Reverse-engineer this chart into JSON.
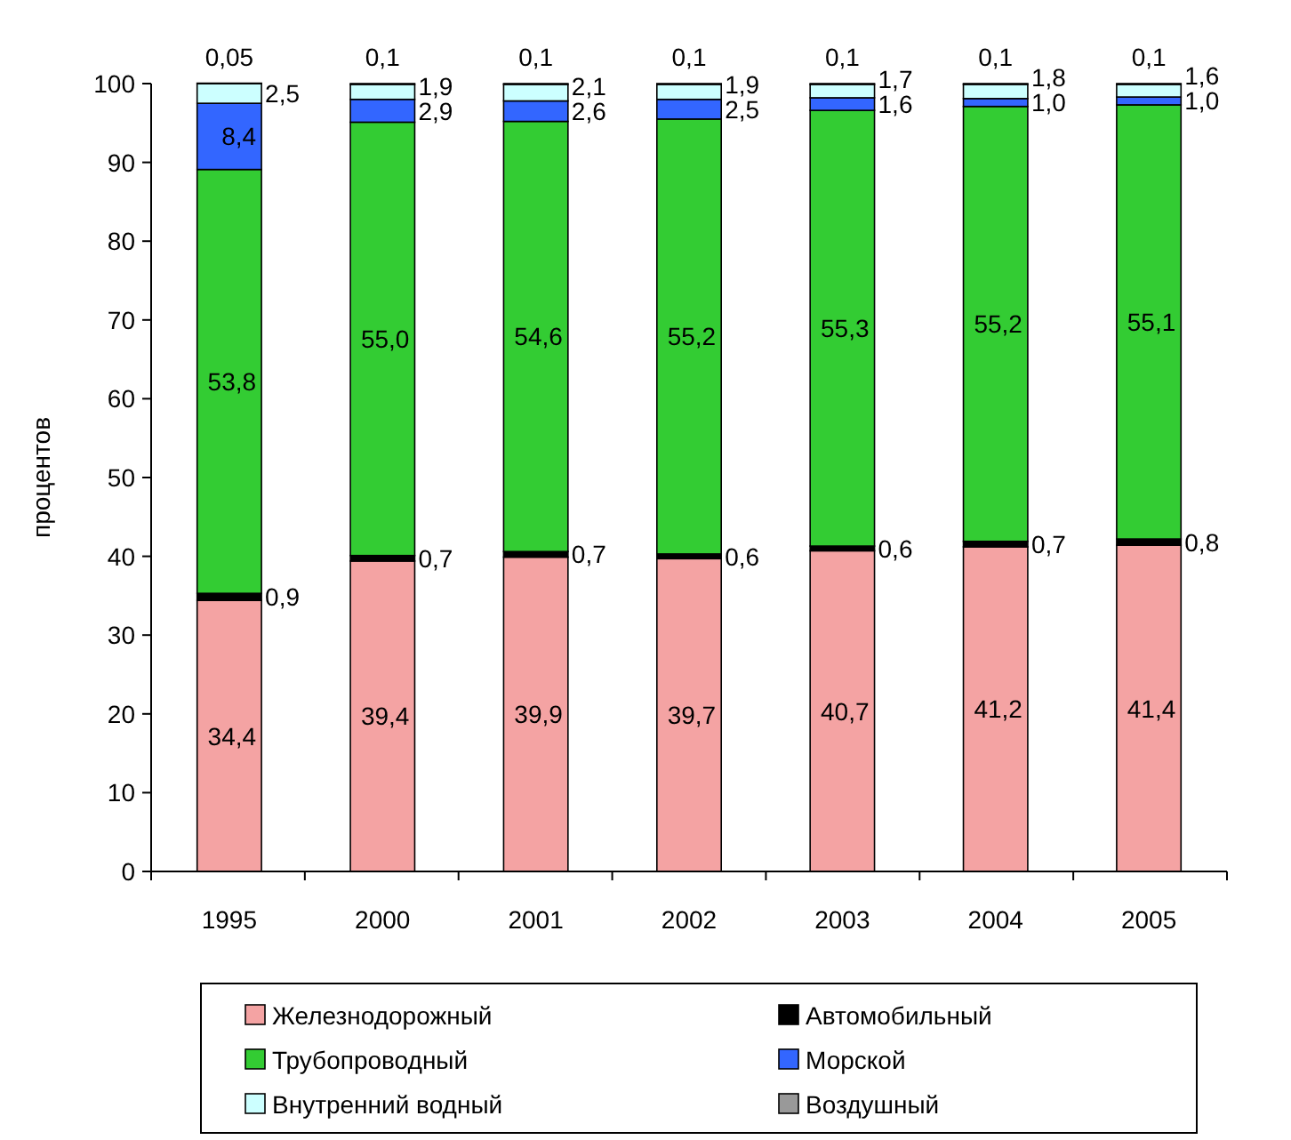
{
  "chart_data": {
    "type": "bar",
    "stacked": true,
    "ylabel": "процентов",
    "categories": [
      "1995",
      "2000",
      "2001",
      "2002",
      "2003",
      "2004",
      "2005"
    ],
    "ylim": [
      0,
      100
    ],
    "yticks": [
      0,
      10,
      20,
      30,
      40,
      50,
      60,
      70,
      80,
      90,
      100
    ],
    "grid": false,
    "legend": "bottom",
    "series": [
      {
        "name": "Железнодорожный",
        "color": "#f4a3a3",
        "values": [
          34.4,
          39.4,
          39.9,
          39.7,
          40.7,
          41.2,
          41.4
        ],
        "value_labels": [
          "34,4",
          "39,4",
          "39,9",
          "39,7",
          "40,7",
          "41,2",
          "41,4"
        ]
      },
      {
        "name": "Автомобильный",
        "color": "#000000",
        "values": [
          0.9,
          0.7,
          0.7,
          0.6,
          0.6,
          0.7,
          0.8
        ],
        "value_labels": [
          "0,9",
          "0,7",
          "0,7",
          "0,6",
          "0,6",
          "0,7",
          "0,8"
        ]
      },
      {
        "name": "Трубопроводный",
        "color": "#33cc33",
        "values": [
          53.8,
          55.0,
          54.6,
          55.2,
          55.3,
          55.2,
          55.1
        ],
        "value_labels": [
          "53,8",
          "55,0",
          "54,6",
          "55,2",
          "55,3",
          "55,2",
          "55,1"
        ]
      },
      {
        "name": "Морской",
        "color": "#3366ff",
        "values": [
          8.4,
          2.9,
          2.6,
          2.5,
          1.6,
          1.0,
          1.0
        ],
        "value_labels": [
          "8,4",
          "2,9",
          "2,6",
          "2,5",
          "1,6",
          "1,0",
          "1,0"
        ]
      },
      {
        "name": "Внутренний водный",
        "color": "#ccffff",
        "values": [
          2.5,
          1.9,
          2.1,
          1.9,
          1.7,
          1.8,
          1.6
        ],
        "value_labels": [
          "2,5",
          "1,9",
          "2,1",
          "1,9",
          "1,7",
          "1,8",
          "1,6"
        ]
      },
      {
        "name": "Воздушный",
        "color": "#999999",
        "values": [
          0.05,
          0.1,
          0.1,
          0.1,
          0.1,
          0.1,
          0.1
        ],
        "value_labels": [
          "0,05",
          "0,1",
          "0,1",
          "0,1",
          "0,1",
          "0,1",
          "0,1"
        ]
      }
    ]
  }
}
